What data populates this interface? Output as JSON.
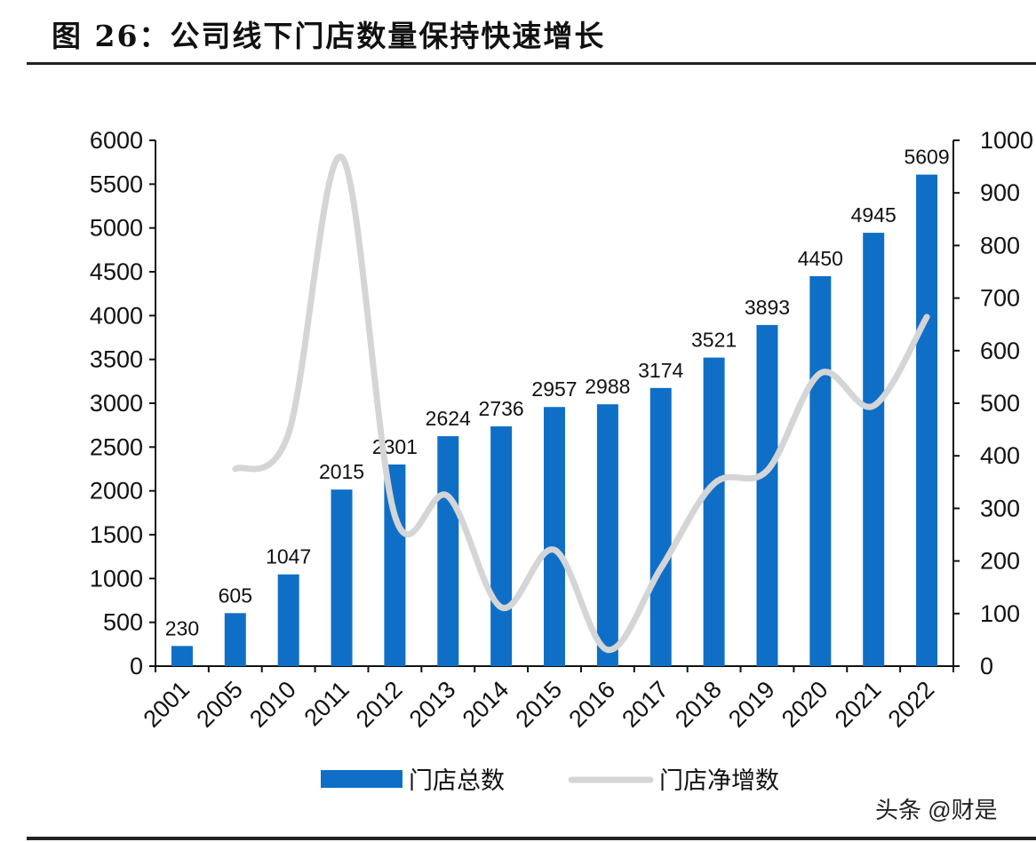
{
  "title": "图 26：公司线下门店数量保持快速增长",
  "watermark": "头条 @财是",
  "chart_data": {
    "type": "bar+line",
    "title": "图 26：公司线下门店数量保持快速增长",
    "categories": [
      "2001",
      "2005",
      "2010",
      "2011",
      "2012",
      "2013",
      "2014",
      "2015",
      "2016",
      "2017",
      "2018",
      "2019",
      "2020",
      "2021",
      "2022"
    ],
    "series": [
      {
        "name": "门店总数",
        "type": "bar",
        "axis": "left",
        "color": "#0f6fc6",
        "values": [
          230,
          605,
          1047,
          2015,
          2301,
          2624,
          2736,
          2957,
          2988,
          3174,
          3521,
          3893,
          4450,
          4945,
          5609
        ]
      },
      {
        "name": "门店净增数",
        "type": "line",
        "axis": "right",
        "color": "#d4d5d7",
        "values": [
          null,
          375,
          442,
          968,
          286,
          323,
          112,
          221,
          31,
          186,
          347,
          372,
          557,
          495,
          664
        ]
      }
    ],
    "y_left": {
      "range": [
        0,
        6000
      ],
      "ticks": [
        "0",
        "500",
        "1000",
        "1500",
        "2000",
        "2500",
        "3000",
        "3500",
        "4000",
        "4500",
        "5000",
        "5500",
        "6000"
      ]
    },
    "y_right": {
      "range": [
        0,
        1000
      ],
      "ticks": [
        "0",
        "100",
        "200",
        "300",
        "400",
        "500",
        "600",
        "700",
        "800",
        "900",
        "1000"
      ]
    },
    "grid": false,
    "legend": "bottom"
  }
}
